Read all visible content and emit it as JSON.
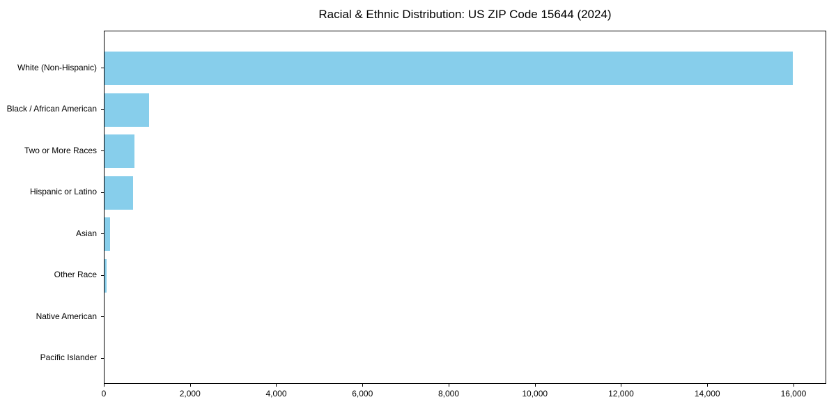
{
  "figure": {
    "title": "Racial & Ethnic Distribution: US ZIP Code 15644 (2024)"
  },
  "chart_data": {
    "type": "bar",
    "orientation": "horizontal",
    "title": "Racial & Ethnic Distribution: US ZIP Code 15644 (2024)",
    "categories": [
      "White (Non-Hispanic)",
      "Black / African American",
      "Two or More Races",
      "Hispanic or Latino",
      "Asian",
      "Other Race",
      "Native American",
      "Pacific Islander"
    ],
    "values": [
      15960,
      1030,
      700,
      670,
      130,
      50,
      0,
      0
    ],
    "xlabel": "",
    "ylabel": "",
    "xlim": [
      0,
      16760
    ],
    "xticks": [
      0,
      2000,
      4000,
      6000,
      8000,
      10000,
      12000,
      14000,
      16000
    ],
    "xtick_labels": [
      "0",
      "2,000",
      "4,000",
      "6,000",
      "8,000",
      "10,000",
      "12,000",
      "14,000",
      "16,000"
    ],
    "bar_color": "#87CEEB",
    "grid": false,
    "legend": null
  }
}
